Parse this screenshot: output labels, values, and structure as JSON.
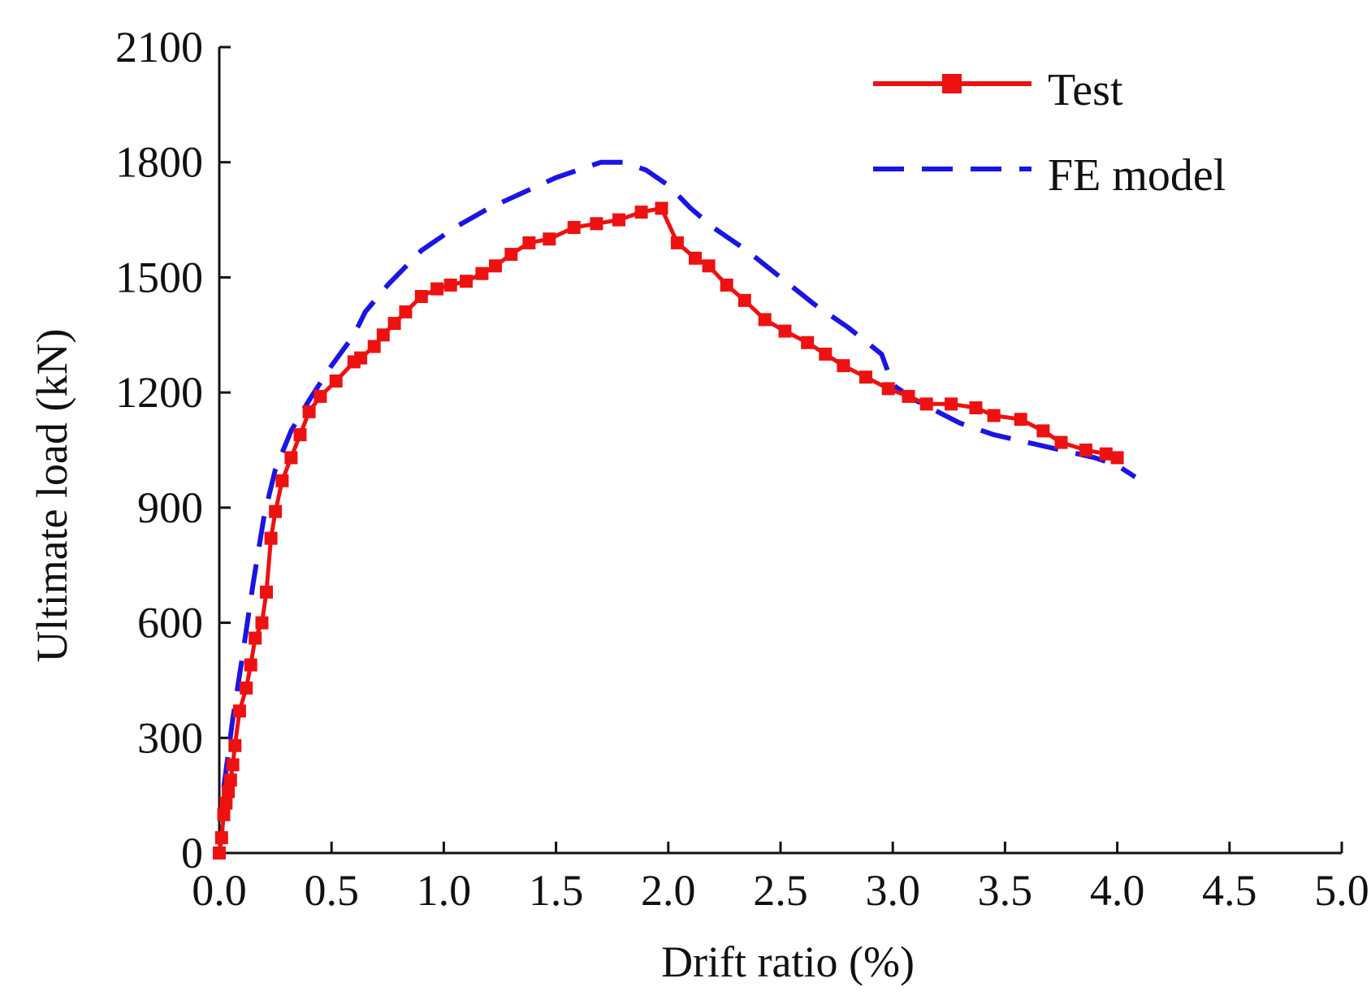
{
  "chart_data": {
    "type": "line",
    "title": "",
    "xlabel": "Drift ratio (%)",
    "ylabel": "Ultimate load (kN)",
    "xlim": [
      0,
      5.0
    ],
    "ylim": [
      0,
      2100
    ],
    "xticks": [
      0,
      0.5,
      1.0,
      1.5,
      2.0,
      2.5,
      3.0,
      3.5,
      4.0,
      4.5,
      5.0
    ],
    "xtick_labels": [
      "0.0",
      "0.5",
      "1.0",
      "1.5",
      "2.0",
      "2.5",
      "3.0",
      "3.5",
      "4.0",
      "4.5",
      "5.0"
    ],
    "yticks": [
      0,
      300,
      600,
      900,
      1200,
      1500,
      1800,
      2100
    ],
    "ytick_labels": [
      "0",
      "300",
      "600",
      "900",
      "1200",
      "1500",
      "1800",
      "2100"
    ],
    "legend_position": "top-right",
    "series": [
      {
        "name": "Test",
        "color": "#ee1111",
        "style": "solid-square-markers",
        "x": [
          0.0,
          0.01,
          0.02,
          0.03,
          0.04,
          0.05,
          0.06,
          0.07,
          0.09,
          0.12,
          0.14,
          0.16,
          0.19,
          0.21,
          0.23,
          0.25,
          0.28,
          0.32,
          0.36,
          0.4,
          0.45,
          0.52,
          0.6,
          0.63,
          0.69,
          0.73,
          0.78,
          0.83,
          0.9,
          0.97,
          1.03,
          1.1,
          1.17,
          1.23,
          1.3,
          1.38,
          1.47,
          1.58,
          1.68,
          1.78,
          1.88,
          1.97,
          2.04,
          2.12,
          2.18,
          2.26,
          2.34,
          2.43,
          2.52,
          2.62,
          2.7,
          2.78,
          2.88,
          2.98,
          3.07,
          3.15,
          3.26,
          3.37,
          3.45,
          3.57,
          3.67,
          3.75,
          3.86,
          3.95,
          4.0
        ],
        "y": [
          0,
          40,
          100,
          130,
          160,
          190,
          230,
          280,
          370,
          430,
          490,
          560,
          600,
          680,
          820,
          890,
          970,
          1030,
          1090,
          1150,
          1190,
          1230,
          1280,
          1290,
          1320,
          1350,
          1380,
          1410,
          1450,
          1470,
          1480,
          1490,
          1510,
          1530,
          1560,
          1590,
          1600,
          1630,
          1640,
          1650,
          1670,
          1680,
          1590,
          1550,
          1530,
          1480,
          1440,
          1390,
          1360,
          1330,
          1300,
          1270,
          1240,
          1210,
          1190,
          1170,
          1170,
          1160,
          1140,
          1130,
          1100,
          1070,
          1050,
          1040,
          1030
        ]
      },
      {
        "name": "FE model",
        "color": "#1a14e6",
        "style": "dashed",
        "x": [
          0.02,
          0.06,
          0.1,
          0.15,
          0.2,
          0.25,
          0.32,
          0.4,
          0.5,
          0.6,
          0.65,
          0.75,
          0.9,
          1.05,
          1.2,
          1.35,
          1.5,
          1.6,
          1.7,
          1.8,
          1.9,
          2.0,
          2.1,
          2.2,
          2.35,
          2.5,
          2.65,
          2.8,
          2.95,
          3.0,
          3.1,
          3.2,
          3.3,
          3.45,
          3.6,
          3.75,
          3.9,
          4.0,
          4.08
        ],
        "y": [
          170,
          350,
          500,
          700,
          880,
          1000,
          1100,
          1180,
          1270,
          1350,
          1410,
          1480,
          1570,
          1630,
          1680,
          1720,
          1760,
          1780,
          1800,
          1800,
          1780,
          1740,
          1680,
          1630,
          1570,
          1500,
          1430,
          1370,
          1300,
          1220,
          1180,
          1150,
          1120,
          1090,
          1070,
          1050,
          1030,
          1010,
          980
        ]
      }
    ]
  }
}
